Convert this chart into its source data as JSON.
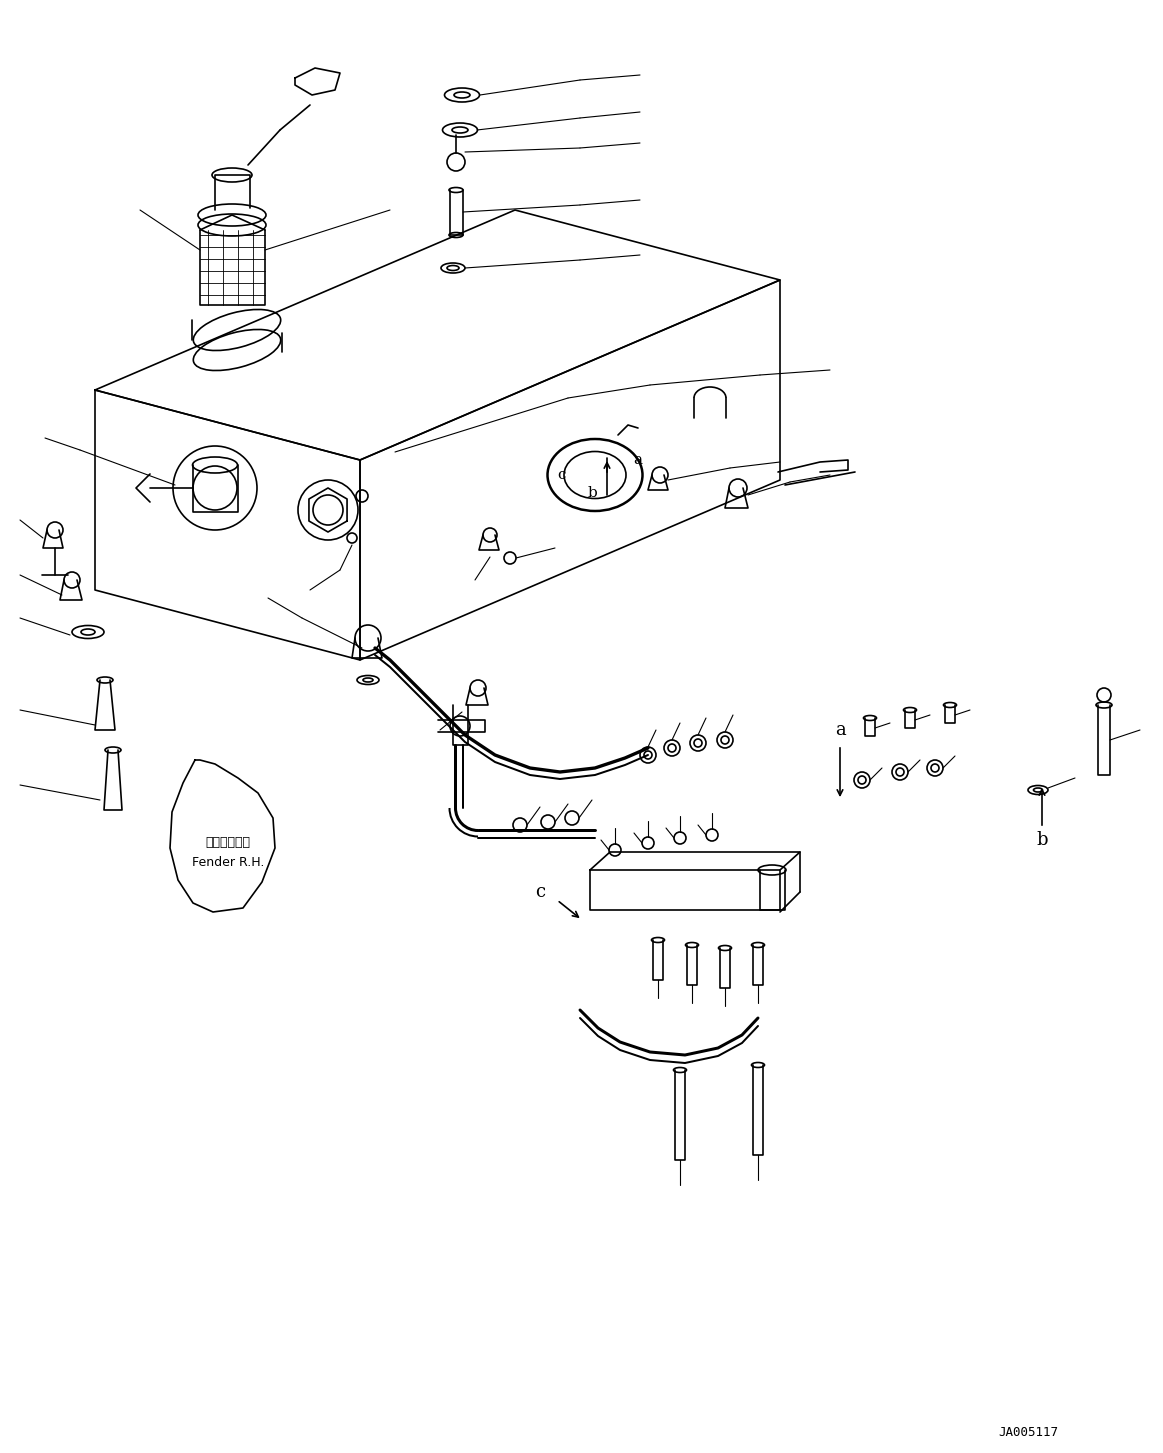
{
  "fig_width": 11.63,
  "fig_height": 14.53,
  "dpi": 100,
  "background_color": "#ffffff",
  "diagram_id": "JA005117",
  "fender_label_jp": "フェンダ　右",
  "fender_label_en": "Fender R.H.",
  "font_color": "#000000",
  "line_color": "#000000",
  "line_width": 1.2
}
